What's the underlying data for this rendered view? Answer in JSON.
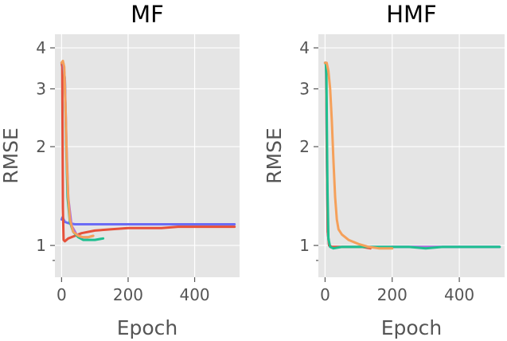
{
  "chart_data": [
    {
      "type": "line",
      "title": "MF",
      "xlabel": "Epoch",
      "ylabel": "RMSE",
      "yscale": "log",
      "xlim": [
        -20,
        535
      ],
      "ylim": [
        0.8,
        4.4
      ],
      "xticks": [
        0,
        200,
        400
      ],
      "yticks": [
        1,
        2,
        3,
        4
      ],
      "grid": true,
      "series": [
        {
          "color": "#6b6cf5",
          "x": [
            0,
            3,
            6,
            10,
            20,
            40,
            60,
            100,
            150,
            200,
            250,
            300,
            350,
            400,
            450,
            500,
            520
          ],
          "y": [
            1.2,
            1.22,
            1.2,
            1.18,
            1.17,
            1.16,
            1.16,
            1.16,
            1.16,
            1.16,
            1.16,
            1.16,
            1.16,
            1.16,
            1.16,
            1.16,
            1.16
          ]
        },
        {
          "color": "#e6503a",
          "x": [
            0,
            2,
            4,
            6,
            10,
            20,
            40,
            60,
            100,
            150,
            200,
            250,
            300,
            350,
            400,
            450,
            500,
            520
          ],
          "y": [
            3.6,
            3.5,
            1.3,
            1.04,
            1.03,
            1.05,
            1.07,
            1.09,
            1.11,
            1.12,
            1.13,
            1.13,
            1.13,
            1.14,
            1.14,
            1.14,
            1.14,
            1.14
          ]
        },
        {
          "color": "#1dbf8f",
          "x": [
            0,
            5,
            10,
            14,
            18,
            25,
            35,
            50,
            65,
            80,
            100,
            125
          ],
          "y": [
            3.6,
            3.6,
            3.2,
            2.0,
            1.4,
            1.18,
            1.1,
            1.06,
            1.04,
            1.04,
            1.04,
            1.05
          ]
        },
        {
          "color": "#b06bd8",
          "x": [
            0,
            5,
            10,
            15,
            20,
            30,
            45,
            60,
            80,
            95
          ],
          "y": [
            3.6,
            3.6,
            3.2,
            2.0,
            1.4,
            1.15,
            1.08,
            1.06,
            1.06,
            1.07
          ]
        },
        {
          "color": "#f5a05a",
          "x": [
            0,
            4,
            8,
            12,
            16,
            20,
            25,
            35,
            50,
            65,
            80,
            95
          ],
          "y": [
            3.6,
            3.65,
            3.5,
            2.6,
            1.8,
            1.4,
            1.2,
            1.1,
            1.07,
            1.06,
            1.06,
            1.07
          ]
        }
      ]
    },
    {
      "type": "line",
      "title": "HMF",
      "xlabel": "Epoch",
      "ylabel": "RMSE",
      "yscale": "log",
      "xlim": [
        -20,
        535
      ],
      "ylim": [
        0.8,
        4.4
      ],
      "xticks": [
        0,
        200,
        400
      ],
      "yticks": [
        1,
        2,
        3,
        4
      ],
      "grid": true,
      "series": [
        {
          "color": "#6b6cf5",
          "x": [
            0,
            3,
            5,
            8,
            12,
            20,
            40,
            80,
            150,
            250,
            350,
            450,
            520
          ],
          "y": [
            3.6,
            3.6,
            2.0,
            1.1,
            1.0,
            0.99,
            0.99,
            0.99,
            0.99,
            0.99,
            0.99,
            0.99,
            0.99
          ]
        },
        {
          "color": "#e6503a",
          "x": [
            0,
            3,
            5,
            8,
            12,
            20,
            40,
            80,
            110,
            135
          ],
          "y": [
            3.6,
            3.6,
            2.0,
            1.1,
            1.0,
            0.99,
            0.99,
            0.99,
            0.99,
            0.98
          ]
        },
        {
          "color": "#b06bd8",
          "x": [
            200,
            250,
            300,
            350,
            400,
            450,
            500,
            520
          ],
          "y": [
            0.99,
            0.99,
            0.99,
            0.99,
            0.99,
            0.99,
            0.99,
            0.99
          ]
        },
        {
          "color": "#1dbf8f",
          "x": [
            0,
            2,
            4,
            7,
            10,
            15,
            25,
            50,
            100,
            150,
            200,
            250,
            300,
            350,
            400,
            450,
            500,
            520
          ],
          "y": [
            3.6,
            3.6,
            3.3,
            1.5,
            1.05,
            0.99,
            0.98,
            0.99,
            0.99,
            0.99,
            0.99,
            0.99,
            0.98,
            0.99,
            0.99,
            0.99,
            0.99,
            0.99
          ]
        },
        {
          "color": "#f5a05a",
          "x": [
            0,
            5,
            10,
            15,
            20,
            25,
            30,
            35,
            40,
            50,
            70,
            100,
            130,
            160,
            190,
            200
          ],
          "y": [
            3.6,
            3.6,
            3.4,
            3.0,
            2.4,
            1.8,
            1.4,
            1.2,
            1.12,
            1.08,
            1.04,
            1.01,
            0.99,
            0.98,
            0.98,
            0.98
          ]
        }
      ]
    }
  ]
}
